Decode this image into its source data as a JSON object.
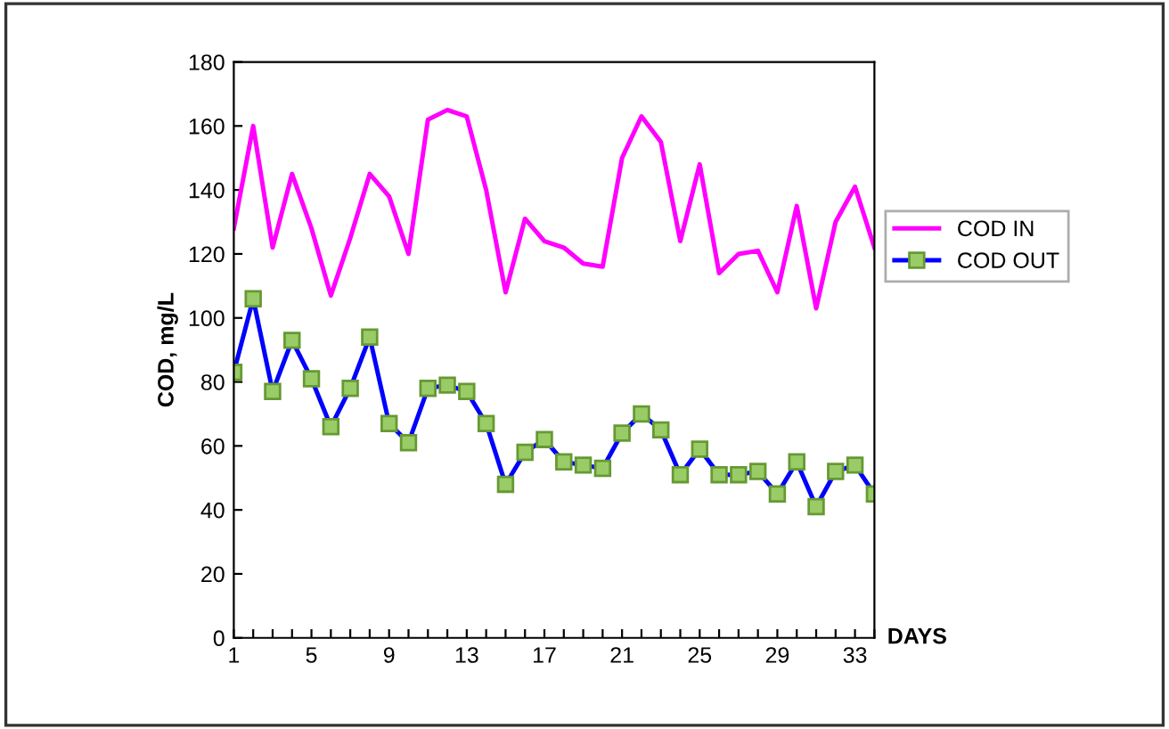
{
  "chart_data": {
    "type": "line",
    "xlabel": "DAYS",
    "ylabel": "COD, mg/L",
    "x": [
      1,
      2,
      3,
      4,
      5,
      6,
      7,
      8,
      9,
      10,
      11,
      12,
      13,
      14,
      15,
      16,
      17,
      18,
      19,
      20,
      21,
      22,
      23,
      24,
      25,
      26,
      27,
      28,
      29,
      30,
      31,
      32,
      33,
      34
    ],
    "series": [
      {
        "name": "COD IN",
        "color": "#ff00ff",
        "marker": "none",
        "values": [
          128,
          160,
          122,
          145,
          128,
          107,
          125,
          145,
          138,
          120,
          162,
          165,
          163,
          140,
          108,
          131,
          124,
          122,
          117,
          116,
          150,
          163,
          155,
          124,
          148,
          114,
          120,
          121,
          108,
          135,
          103,
          130,
          141,
          122
        ]
      },
      {
        "name": "COD OUT",
        "color": "#0000ff",
        "marker": "square",
        "values": [
          83,
          106,
          77,
          93,
          81,
          66,
          78,
          94,
          67,
          61,
          78,
          79,
          77,
          67,
          48,
          58,
          62,
          55,
          54,
          53,
          64,
          70,
          65,
          51,
          59,
          51,
          51,
          52,
          45,
          55,
          41,
          52,
          54,
          45
        ]
      }
    ],
    "xlim": [
      1,
      34
    ],
    "xticks": [
      {
        "value": 1,
        "label": "1"
      },
      {
        "value": 2,
        "label": null
      },
      {
        "value": 3,
        "label": null
      },
      {
        "value": 4,
        "label": null
      },
      {
        "value": 5,
        "label": "5"
      },
      {
        "value": 6,
        "label": null
      },
      {
        "value": 7,
        "label": null
      },
      {
        "value": 8,
        "label": null
      },
      {
        "value": 9,
        "label": "9"
      },
      {
        "value": 10,
        "label": null
      },
      {
        "value": 11,
        "label": null
      },
      {
        "value": 12,
        "label": null
      },
      {
        "value": 13,
        "label": "13"
      },
      {
        "value": 14,
        "label": null
      },
      {
        "value": 15,
        "label": null
      },
      {
        "value": 16,
        "label": null
      },
      {
        "value": 17,
        "label": "17"
      },
      {
        "value": 18,
        "label": null
      },
      {
        "value": 19,
        "label": null
      },
      {
        "value": 20,
        "label": null
      },
      {
        "value": 21,
        "label": "21"
      },
      {
        "value": 22,
        "label": null
      },
      {
        "value": 23,
        "label": null
      },
      {
        "value": 24,
        "label": null
      },
      {
        "value": 25,
        "label": "25"
      },
      {
        "value": 26,
        "label": null
      },
      {
        "value": 27,
        "label": null
      },
      {
        "value": 28,
        "label": null
      },
      {
        "value": 29,
        "label": "29"
      },
      {
        "value": 30,
        "label": null
      },
      {
        "value": 31,
        "label": null
      },
      {
        "value": 32,
        "label": null
      },
      {
        "value": 33,
        "label": "33"
      },
      {
        "value": 34,
        "label": null
      }
    ],
    "ylim": [
      0,
      180
    ],
    "yticks": [
      0,
      20,
      40,
      60,
      80,
      100,
      120,
      140,
      160,
      180
    ],
    "grid": false,
    "legend": "right",
    "line_style": "solid"
  }
}
